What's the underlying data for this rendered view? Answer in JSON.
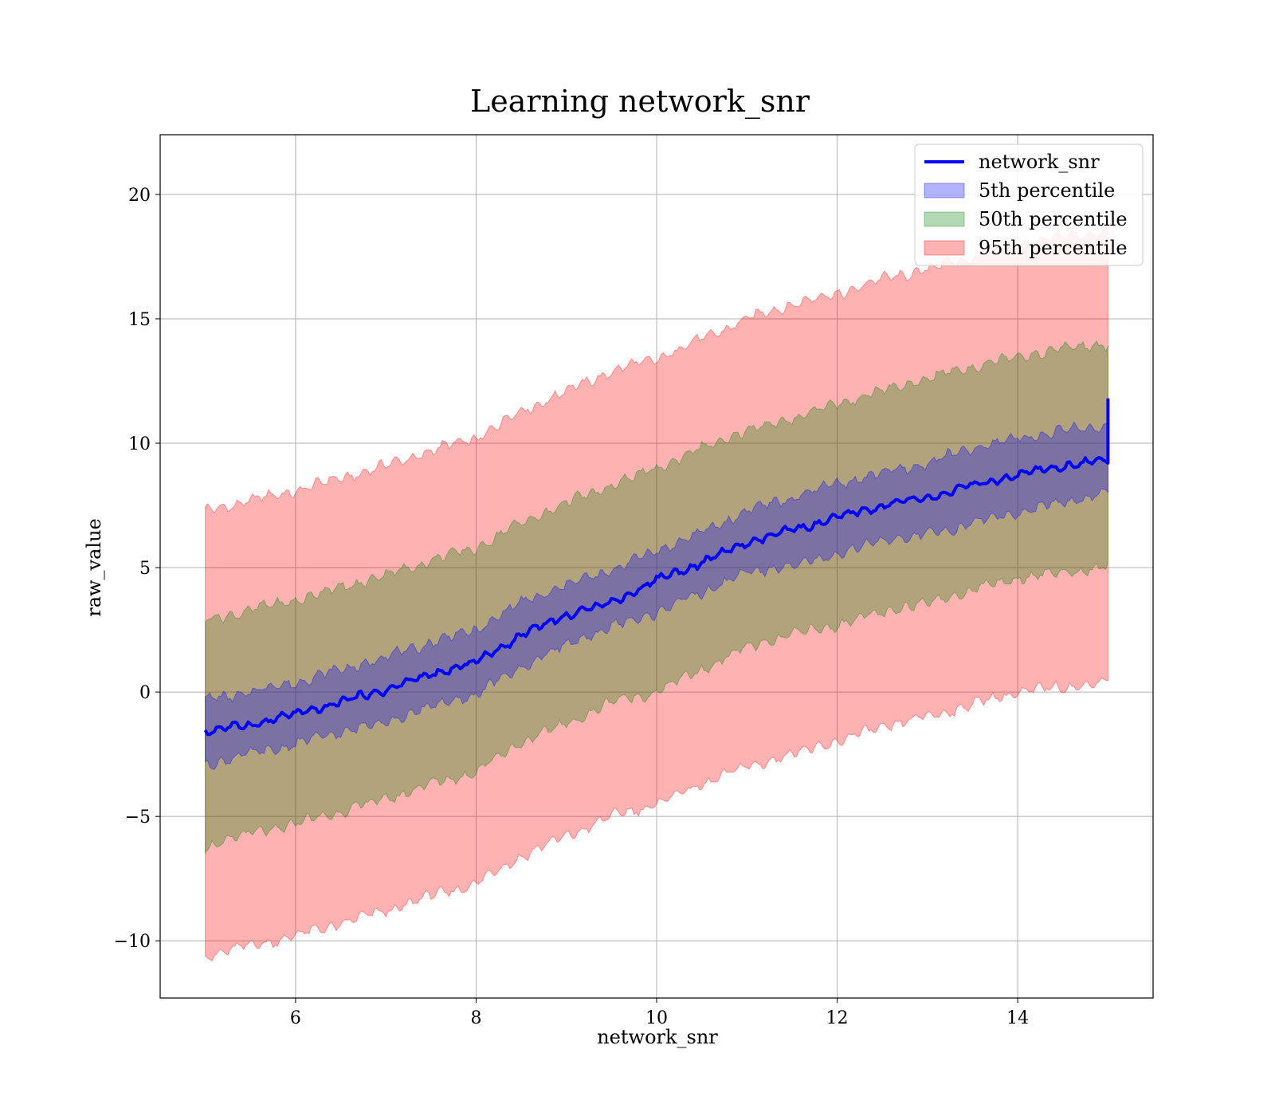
{
  "chart_data": {
    "type": "line",
    "title": "Learning network_snr",
    "xlabel": "network_snr",
    "ylabel": "raw_value",
    "xlim": [
      4.5,
      15.5
    ],
    "ylim": [
      -12.3,
      22.4
    ],
    "x_ticks": [
      6,
      8,
      10,
      12,
      14
    ],
    "x_tick_labels": [
      "6",
      "8",
      "10",
      "12",
      "14"
    ],
    "y_ticks": [
      -10,
      -5,
      0,
      5,
      10,
      15,
      20
    ],
    "y_tick_labels": [
      "−10",
      "−5",
      "0",
      "5",
      "10",
      "15",
      "20"
    ],
    "grid": true,
    "legend_position": "top-right",
    "x": [
      5.0,
      5.5,
      6.0,
      6.5,
      7.0,
      7.5,
      8.0,
      8.5,
      9.0,
      9.5,
      10.0,
      10.5,
      11.0,
      11.5,
      12.0,
      12.5,
      13.0,
      13.5,
      14.0,
      14.5,
      15.0
    ],
    "series": [
      {
        "name": "network_snr",
        "kind": "line",
        "color": "#0000ff",
        "y": [
          -1.6,
          -1.3,
          -0.9,
          -0.4,
          0.1,
          0.7,
          1.2,
          2.3,
          3.1,
          3.6,
          4.5,
          5.2,
          6.0,
          6.5,
          7.0,
          7.5,
          7.8,
          8.3,
          8.7,
          9.1,
          9.3
        ],
        "end_spike": 11.8
      },
      {
        "name": "5th percentile",
        "kind": "band",
        "color": "#0000ff",
        "fill_opacity": 0.3,
        "lower": [
          -2.9,
          -2.5,
          -2.1,
          -1.6,
          -1.2,
          -0.6,
          -0.1,
          1.0,
          1.9,
          2.6,
          3.2,
          4.0,
          4.8,
          5.1,
          5.5,
          6.1,
          6.3,
          6.8,
          7.2,
          7.6,
          8.0
        ],
        "upper": [
          -0.3,
          0.0,
          0.4,
          0.9,
          1.4,
          2.0,
          2.5,
          3.6,
          4.3,
          4.9,
          5.7,
          6.4,
          7.3,
          7.8,
          8.4,
          8.8,
          9.2,
          9.8,
          10.2,
          10.5,
          10.7
        ]
      },
      {
        "name": "50th percentile",
        "kind": "band",
        "color": "#008000",
        "fill_opacity": 0.3,
        "lower": [
          -6.2,
          -5.7,
          -5.3,
          -4.8,
          -4.3,
          -3.7,
          -3.2,
          -2.0,
          -1.3,
          -0.4,
          0.0,
          0.9,
          1.8,
          2.3,
          2.7,
          3.2,
          3.6,
          4.1,
          4.6,
          4.8,
          5.0
        ],
        "upper": [
          2.9,
          3.3,
          3.7,
          4.2,
          4.7,
          5.3,
          5.8,
          6.8,
          7.6,
          8.3,
          9.0,
          9.8,
          10.5,
          11.0,
          11.6,
          12.1,
          12.6,
          13.1,
          13.5,
          13.8,
          14.0
        ]
      },
      {
        "name": "95th percentile",
        "kind": "band",
        "color": "#ff0000",
        "fill_opacity": 0.3,
        "lower": [
          -10.6,
          -10.2,
          -9.8,
          -9.3,
          -8.8,
          -8.2,
          -7.7,
          -6.6,
          -5.8,
          -5.0,
          -4.5,
          -3.7,
          -3.0,
          -2.5,
          -2.0,
          -1.4,
          -1.0,
          -0.5,
          0.0,
          0.2,
          0.4
        ],
        "upper": [
          7.3,
          7.7,
          8.1,
          8.6,
          9.1,
          9.7,
          10.2,
          11.3,
          12.1,
          12.9,
          13.4,
          14.2,
          15.0,
          15.6,
          16.0,
          16.6,
          17.0,
          17.5,
          18.0,
          18.3,
          18.5
        ]
      }
    ]
  }
}
